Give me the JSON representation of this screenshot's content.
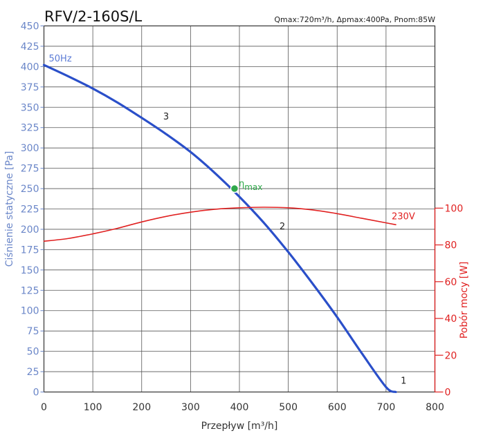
{
  "chart_data": {
    "type": "line",
    "title": "RFV/2-160S/L",
    "subtitle": "Qmax:720m³/h, Δpmax:400Pa, Pnom:85W",
    "xlabel": "Przepływ [m³/h]",
    "ylabel_left": "Ciśnienie statyczne [Pa]",
    "ylabel_right": "Pobór mocy [W]",
    "xlim": [
      0,
      800
    ],
    "ylim_left": [
      0,
      450
    ],
    "ylim_right": [
      0,
      100
    ],
    "x_ticks": [
      0,
      100,
      200,
      300,
      400,
      500,
      600,
      700,
      800
    ],
    "y_left_ticks": [
      0,
      25,
      50,
      75,
      100,
      125,
      150,
      175,
      200,
      225,
      250,
      275,
      300,
      325,
      350,
      375,
      400,
      425,
      450
    ],
    "y_right_ticks": [
      0,
      20,
      40,
      60,
      80,
      100
    ],
    "grid": true,
    "colors": {
      "pressure": "#2a4fc9",
      "power": "#e02020",
      "eta": "#2fa84a",
      "left_axis": "#6a86c8",
      "right_axis": "#e02020",
      "grid": "#555555"
    },
    "series": [
      {
        "name": "50Hz",
        "axis": "left",
        "x": [
          0,
          50,
          100,
          150,
          200,
          250,
          300,
          350,
          400,
          450,
          500,
          550,
          600,
          650,
          700,
          720
        ],
        "y": [
          402,
          388,
          373,
          356,
          337,
          317,
          295,
          269,
          240,
          208,
          172,
          133,
          92,
          48,
          6,
          0
        ]
      },
      {
        "name": "230V",
        "axis": "right",
        "x": [
          0,
          50,
          100,
          150,
          200,
          250,
          300,
          350,
          400,
          450,
          500,
          550,
          600,
          650,
          700,
          720
        ],
        "y": [
          82,
          83.5,
          86,
          89,
          92.5,
          95.5,
          97.8,
          99.4,
          100.2,
          100.5,
          100.2,
          99,
          97,
          94.5,
          92,
          91
        ]
      }
    ],
    "annotations": {
      "eta_max": {
        "label": "η",
        "sub": "max",
        "x": 390,
        "y": 250
      },
      "point_labels": [
        {
          "text": "3",
          "x": 244,
          "y": 335
        },
        {
          "text": "2",
          "x": 482,
          "y": 200
        },
        {
          "text": "1",
          "x": 730,
          "y": 10
        }
      ]
    }
  }
}
